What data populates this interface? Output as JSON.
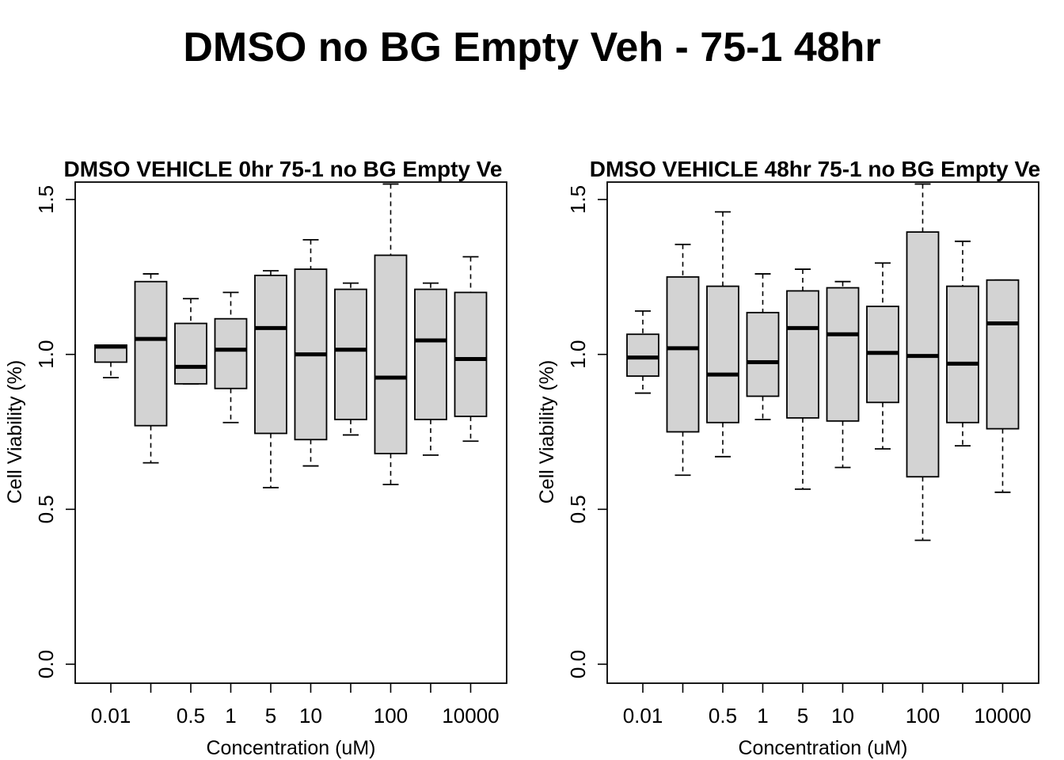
{
  "main_title": "DMSO no BG Empty Veh - 75-1 48hr",
  "chart_data": [
    {
      "type": "box",
      "title": "DMSO VEHICLE 0hr 75-1 no BG Empty Ve",
      "xlabel": "Concentration (uM)",
      "ylabel": "Cell Viability (%)",
      "ylim": [
        0,
        1.5
      ],
      "yticks": [
        "0.0",
        "0.5",
        "1.0",
        "1.5"
      ],
      "categories": [
        "0.01",
        "",
        "0.5",
        "1",
        "5",
        "10",
        "",
        "100",
        "",
        "10000"
      ],
      "boxes": [
        {
          "min": 0.925,
          "q1": 0.975,
          "median": 1.025,
          "q3": 1.03,
          "max": 1.03
        },
        {
          "min": 0.65,
          "q1": 0.77,
          "median": 1.05,
          "q3": 1.235,
          "max": 1.26
        },
        {
          "min": 0.905,
          "q1": 0.905,
          "median": 0.96,
          "q3": 1.1,
          "max": 1.18
        },
        {
          "min": 0.78,
          "q1": 0.89,
          "median": 1.015,
          "q3": 1.115,
          "max": 1.2
        },
        {
          "min": 0.57,
          "q1": 0.745,
          "median": 1.085,
          "q3": 1.255,
          "max": 1.27
        },
        {
          "min": 0.64,
          "q1": 0.725,
          "median": 1.0,
          "q3": 1.275,
          "max": 1.37
        },
        {
          "min": 0.74,
          "q1": 0.79,
          "median": 1.015,
          "q3": 1.21,
          "max": 1.23
        },
        {
          "min": 0.58,
          "q1": 0.68,
          "median": 0.925,
          "q3": 1.32,
          "max": 1.55
        },
        {
          "min": 0.675,
          "q1": 0.79,
          "median": 1.045,
          "q3": 1.21,
          "max": 1.23
        },
        {
          "min": 0.72,
          "q1": 0.8,
          "median": 0.985,
          "q3": 1.2,
          "max": 1.315
        }
      ],
      "box_fill": "#d3d3d3"
    },
    {
      "type": "box",
      "title": "DMSO VEHICLE 48hr 75-1 no BG Empty Ve",
      "xlabel": "Concentration (uM)",
      "ylabel": "Cell Viability (%)",
      "ylim": [
        0,
        1.5
      ],
      "yticks": [
        "0.0",
        "0.5",
        "1.0",
        "1.5"
      ],
      "categories": [
        "0.01",
        "",
        "0.5",
        "1",
        "5",
        "10",
        "",
        "100",
        "",
        "10000"
      ],
      "boxes": [
        {
          "min": 0.875,
          "q1": 0.93,
          "median": 0.99,
          "q3": 1.065,
          "max": 1.14
        },
        {
          "min": 0.61,
          "q1": 0.75,
          "median": 1.02,
          "q3": 1.25,
          "max": 1.355
        },
        {
          "min": 0.67,
          "q1": 0.78,
          "median": 0.935,
          "q3": 1.22,
          "max": 1.46
        },
        {
          "min": 0.79,
          "q1": 0.865,
          "median": 0.975,
          "q3": 1.135,
          "max": 1.26
        },
        {
          "min": 0.565,
          "q1": 0.795,
          "median": 1.085,
          "q3": 1.205,
          "max": 1.275
        },
        {
          "min": 0.635,
          "q1": 0.785,
          "median": 1.065,
          "q3": 1.215,
          "max": 1.235
        },
        {
          "min": 0.695,
          "q1": 0.845,
          "median": 1.005,
          "q3": 1.155,
          "max": 1.295
        },
        {
          "min": 0.4,
          "q1": 0.605,
          "median": 0.995,
          "q3": 1.395,
          "max": 1.55
        },
        {
          "min": 0.705,
          "q1": 0.78,
          "median": 0.97,
          "q3": 1.22,
          "max": 1.365
        },
        {
          "min": 0.555,
          "q1": 0.76,
          "median": 1.1,
          "q3": 1.24,
          "max": 1.24
        }
      ],
      "box_fill": "#d3d3d3"
    }
  ]
}
